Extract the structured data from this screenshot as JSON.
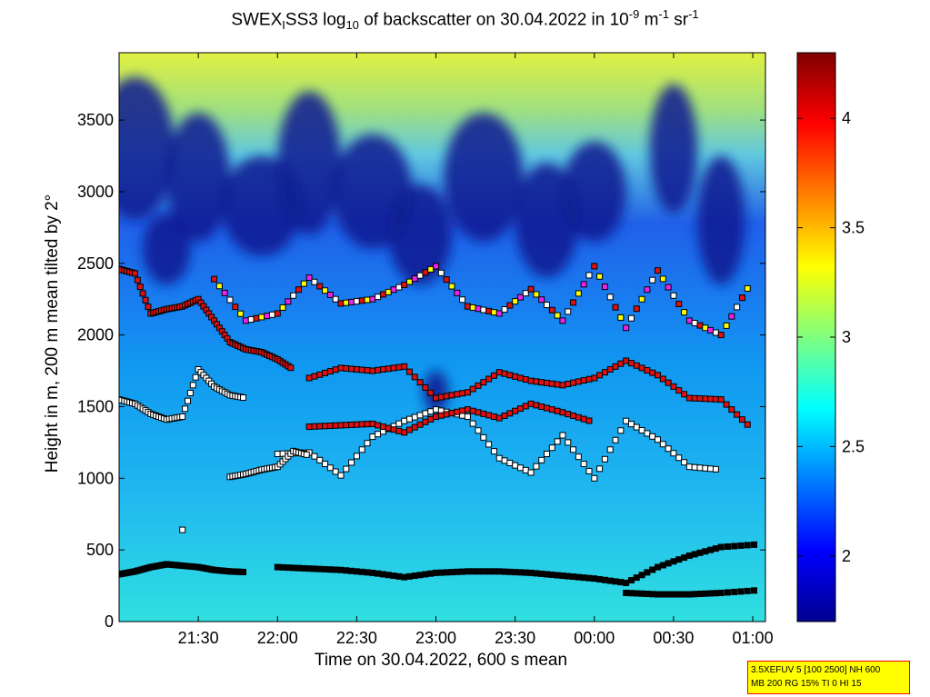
{
  "title": {
    "parts": [
      "SWEX",
      "I",
      "SS3 log",
      "10",
      " of backscatter on 30.04.2022 in 10",
      "-9",
      " m",
      "-1",
      " sr",
      "-1"
    ]
  },
  "info_box": {
    "line1": "3.5XEFUV 5 [100 2500] NH 600",
    "line2": "MB 200 RG 15% TI 0 HI 15"
  },
  "colors": {
    "marker_black": "#000000",
    "marker_white": "#ffffff",
    "marker_red": "#dd1111",
    "marker_yellow": "#ffff00",
    "marker_magenta": "#ee22ee"
  },
  "chart_data": {
    "type": "heatmap",
    "title": "SWEX_I SS3 log10 of backscatter on 30.04.2022 in 10^-9 m^-1 sr^-1",
    "xlabel": "Time on 30.04.2022, 600 s mean",
    "ylabel": "Height in m, 200 m mean tilted by 2°",
    "x_ticks": [
      "21:30",
      "22:00",
      "22:30",
      "23:00",
      "23:30",
      "00:00",
      "00:30",
      "01:00"
    ],
    "x_tick_hours": [
      21.5,
      22.0,
      22.5,
      23.0,
      23.5,
      24.0,
      24.5,
      25.0
    ],
    "xlim_hours": [
      21.0,
      25.08
    ],
    "y_ticks": [
      0,
      500,
      1000,
      1500,
      2000,
      2500,
      3000,
      3500
    ],
    "ylim": [
      0,
      3970
    ],
    "colorbar": {
      "colormap": "jet",
      "range": [
        1.7,
        4.3
      ],
      "ticks": [
        2,
        2.5,
        3,
        3.5,
        4
      ]
    },
    "layers": [
      {
        "name": "surface layer",
        "color": "black",
        "x": [
          21.0,
          21.1,
          21.2,
          21.3,
          21.4,
          21.5,
          21.6,
          21.7,
          21.8
        ],
        "y": [
          330,
          350,
          380,
          400,
          390,
          380,
          360,
          350,
          345
        ]
      },
      {
        "name": "surface layer",
        "color": "black",
        "x": [
          22.0,
          22.2,
          22.4,
          22.6,
          22.8,
          23.0,
          23.2,
          23.4,
          23.6,
          23.8,
          24.0,
          24.2,
          24.4,
          24.6,
          24.8,
          25.05
        ],
        "y": [
          380,
          370,
          360,
          340,
          310,
          340,
          350,
          350,
          340,
          320,
          300,
          270,
          380,
          460,
          520,
          540
        ]
      },
      {
        "name": "lower layer",
        "color": "black",
        "x": [
          24.2,
          24.4,
          24.6,
          24.8,
          25.05
        ],
        "y": [
          200,
          190,
          190,
          200,
          220
        ]
      },
      {
        "name": "aerosol layer",
        "color": "white",
        "x": [
          21.0,
          21.1,
          21.2,
          21.3,
          21.4,
          21.5,
          21.6,
          21.7,
          21.8
        ],
        "y": [
          1550,
          1520,
          1450,
          1410,
          1430,
          1760,
          1640,
          1580,
          1560
        ]
      },
      {
        "name": "aerosol layer",
        "color": "red",
        "x": [
          21.0,
          21.1,
          21.2,
          21.3,
          21.4,
          21.5,
          21.6,
          21.7,
          21.8,
          21.9,
          22.0,
          22.1
        ],
        "y": [
          2460,
          2430,
          2150,
          2180,
          2200,
          2250,
          2100,
          1950,
          1900,
          1880,
          1830,
          1760
        ]
      },
      {
        "name": "aerosol layer",
        "color": "red",
        "x": [
          22.2,
          22.4,
          22.6,
          22.8,
          23.0,
          23.2,
          23.4,
          23.6,
          23.8,
          24.0,
          24.2,
          24.4,
          24.6,
          24.8,
          25.0
        ],
        "y": [
          1700,
          1770,
          1750,
          1780,
          1560,
          1600,
          1740,
          1680,
          1650,
          1700,
          1820,
          1720,
          1560,
          1550,
          1340
        ]
      },
      {
        "name": "aerosol layer",
        "color": "white",
        "x": [
          22.0,
          22.2,
          22.4,
          22.6,
          22.8,
          23.0,
          23.2,
          23.4,
          23.6,
          23.8,
          24.0,
          24.2,
          24.4,
          24.6,
          24.8
        ],
        "y": [
          1170,
          1180,
          1020,
          1290,
          1400,
          1480,
          1430,
          1140,
          1040,
          1300,
          1000,
          1400,
          1270,
          1080,
          1060
        ]
      },
      {
        "name": "upper layer",
        "color": "mixed",
        "x": [
          21.6,
          21.8,
          22.0,
          22.2,
          22.4,
          22.6,
          22.8,
          23.0,
          23.2,
          23.4,
          23.6,
          23.8,
          24.0,
          24.2,
          24.4,
          24.6,
          24.8,
          25.0
        ],
        "y": [
          2390,
          2100,
          2150,
          2400,
          2220,
          2250,
          2350,
          2480,
          2200,
          2150,
          2320,
          2100,
          2480,
          2050,
          2450,
          2100,
          2000,
          2390
        ]
      },
      {
        "name": "lower cloud",
        "color": "white",
        "x": [
          21.7,
          21.8,
          21.9,
          22.0,
          22.1,
          22.2
        ],
        "y": [
          1010,
          1030,
          1060,
          1080,
          1190,
          1160
        ]
      },
      {
        "name": "mid layer",
        "color": "red",
        "x": [
          22.2,
          22.4,
          22.6,
          22.8,
          23.0,
          23.2,
          23.4,
          23.6,
          23.8,
          24.0
        ],
        "y": [
          1360,
          1370,
          1380,
          1320,
          1430,
          1480,
          1420,
          1520,
          1460,
          1390
        ]
      },
      {
        "name": "lower cloud",
        "color": "white",
        "x": [
          21.4
        ],
        "y": [
          640
        ]
      }
    ]
  }
}
